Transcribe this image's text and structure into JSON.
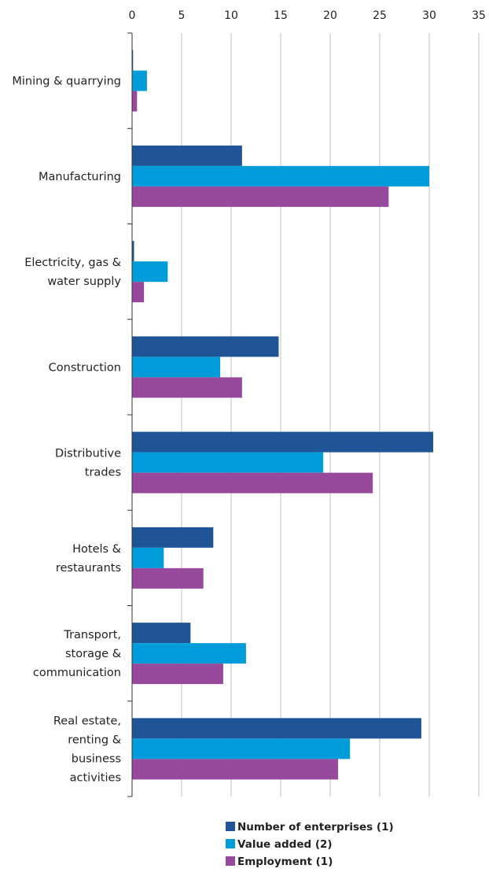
{
  "chart_data": {
    "type": "bar",
    "orientation": "horizontal",
    "title": "",
    "xlabel": "",
    "ylabel": "",
    "xlim": [
      0,
      35
    ],
    "xticks": [
      0,
      5,
      10,
      15,
      20,
      25,
      30,
      35
    ],
    "grid": true,
    "legend_position": "bottom",
    "categories": [
      [
        "Mining & quarrying"
      ],
      [
        "Manufacturing"
      ],
      [
        "Electricity, gas &",
        "water supply"
      ],
      [
        "Construction"
      ],
      [
        "Distributive",
        "trades"
      ],
      [
        "Hotels &",
        "restaurants"
      ],
      [
        "Transport,",
        "storage &",
        "communication"
      ],
      [
        "Real estate,",
        "renting &",
        "business",
        "activities"
      ]
    ],
    "series": [
      {
        "name": "Number of enterprises (1)",
        "color": "#1f5597",
        "values": [
          0.1,
          11.1,
          0.2,
          14.8,
          30.4,
          8.2,
          5.9,
          29.2
        ]
      },
      {
        "name": "Value added (2)",
        "color": "#009cd9",
        "values": [
          1.5,
          30.0,
          3.6,
          8.9,
          19.3,
          3.2,
          11.5,
          22.0
        ]
      },
      {
        "name": "Employment (1)",
        "color": "#974a9c",
        "values": [
          0.5,
          25.9,
          1.2,
          11.1,
          24.3,
          7.2,
          9.2,
          20.8
        ]
      }
    ]
  }
}
